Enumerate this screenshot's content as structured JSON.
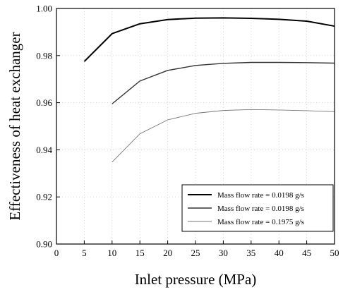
{
  "chart_data": {
    "type": "line",
    "title": "",
    "xlabel": "Inlet pressure (MPa)",
    "ylabel": "Effectiveness of heat exchanger",
    "xlim": [
      0,
      50
    ],
    "ylim": [
      0.9,
      1.0
    ],
    "xticks": [
      "0",
      "5",
      "10",
      "15",
      "20",
      "25",
      "30",
      "35",
      "40",
      "45",
      "50"
    ],
    "yticks": [
      "0.90",
      "0.92",
      "0.94",
      "0.96",
      "0.98",
      "1.00"
    ],
    "grid": true,
    "legend_position": "bottom-right",
    "series": [
      {
        "name": "Mass flow rate = 0.0198 g/s",
        "color": "#000000",
        "style": "solid-thick",
        "x": [
          5,
          10,
          15,
          20,
          25,
          30,
          35,
          40,
          45,
          50
        ],
        "y": [
          0.9775,
          0.9893,
          0.9935,
          0.9953,
          0.9959,
          0.996,
          0.9958,
          0.9954,
          0.9946,
          0.9925
        ]
      },
      {
        "name": "Mass flow rate = 0.0198 g/s",
        "color": "#333333",
        "style": "solid",
        "x": [
          10,
          15,
          20,
          25,
          30,
          35,
          40,
          45,
          50
        ],
        "y": [
          0.9595,
          0.9692,
          0.9737,
          0.9758,
          0.9767,
          0.9771,
          0.9771,
          0.977,
          0.9768
        ]
      },
      {
        "name": "Mass flow rate = 0.1975 g/s",
        "color": "#777777",
        "style": "solid-thin",
        "x": [
          10,
          15,
          20,
          25,
          30,
          35,
          40,
          45,
          50
        ],
        "y": [
          0.9348,
          0.9468,
          0.9527,
          0.9555,
          0.9567,
          0.9571,
          0.9569,
          0.9566,
          0.9562
        ]
      }
    ]
  }
}
